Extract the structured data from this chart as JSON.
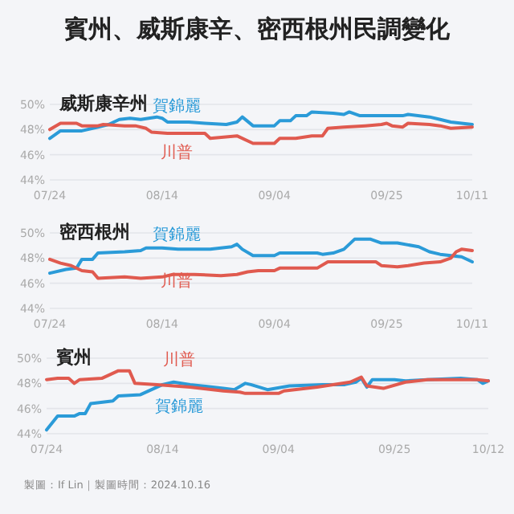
{
  "chart_data": [
    {
      "type": "line",
      "title": "賓州、威斯康辛、密西根州民調變化",
      "subtitle": "威斯康辛州",
      "xlim": [
        "2024-07-24",
        "2024-10-11"
      ],
      "ylim": [
        44,
        50
      ],
      "grid": "y",
      "xticks": [
        {
          "value": "2024-07-24",
          "label": "07/24"
        },
        {
          "value": "2024-08-14",
          "label": "08/14"
        },
        {
          "value": "2024-09-04",
          "label": "09/04"
        },
        {
          "value": "2024-09-25",
          "label": "09/25"
        },
        {
          "value": "2024-10-11",
          "label": "10/11"
        }
      ],
      "yticks": [
        {
          "value": 44,
          "label": "44%"
        },
        {
          "value": 46,
          "label": "46%"
        },
        {
          "value": 48,
          "label": "48%"
        },
        {
          "value": 50,
          "label": "50%"
        }
      ],
      "series": [
        {
          "name": "賀錦麗",
          "color": "#2b9bd8",
          "x": [
            "2024-07-24",
            "2024-07-26",
            "2024-07-30",
            "2024-08-02",
            "2024-08-04",
            "2024-08-06",
            "2024-08-08",
            "2024-08-10",
            "2024-08-13",
            "2024-08-14",
            "2024-08-15",
            "2024-08-19",
            "2024-08-22",
            "2024-08-26",
            "2024-08-28",
            "2024-08-29",
            "2024-08-31",
            "2024-09-04",
            "2024-09-05",
            "2024-09-07",
            "2024-09-08",
            "2024-09-10",
            "2024-09-11",
            "2024-09-15",
            "2024-09-17",
            "2024-09-18",
            "2024-09-20",
            "2024-09-28",
            "2024-09-29",
            "2024-10-03",
            "2024-10-05",
            "2024-10-07",
            "2024-10-09",
            "2024-10-11"
          ],
          "values": [
            47.3,
            47.9,
            47.9,
            48.2,
            48.4,
            48.8,
            48.9,
            48.8,
            49.0,
            48.9,
            48.6,
            48.6,
            48.5,
            48.4,
            48.6,
            49.0,
            48.3,
            48.3,
            48.7,
            48.7,
            49.1,
            49.1,
            49.4,
            49.3,
            49.2,
            49.4,
            49.1,
            49.1,
            49.2,
            49.0,
            48.8,
            48.6,
            48.5,
            48.4
          ]
        },
        {
          "name": "川普",
          "color": "#e05a4f",
          "x": [
            "2024-07-24",
            "2024-07-26",
            "2024-07-29",
            "2024-07-30",
            "2024-08-02",
            "2024-08-03",
            "2024-08-07",
            "2024-08-09",
            "2024-08-11",
            "2024-08-12",
            "2024-08-15",
            "2024-08-22",
            "2024-08-23",
            "2024-08-28",
            "2024-08-31",
            "2024-09-04",
            "2024-09-05",
            "2024-09-08",
            "2024-09-11",
            "2024-09-13",
            "2024-09-14",
            "2024-09-17",
            "2024-09-21",
            "2024-09-24",
            "2024-09-25",
            "2024-09-26",
            "2024-09-28",
            "2024-09-29",
            "2024-10-03",
            "2024-10-05",
            "2024-10-07",
            "2024-10-11"
          ],
          "values": [
            48.0,
            48.5,
            48.5,
            48.3,
            48.3,
            48.4,
            48.3,
            48.3,
            48.1,
            47.8,
            47.7,
            47.7,
            47.3,
            47.5,
            46.9,
            46.9,
            47.3,
            47.3,
            47.5,
            47.5,
            48.1,
            48.2,
            48.3,
            48.4,
            48.5,
            48.3,
            48.2,
            48.5,
            48.4,
            48.3,
            48.1,
            48.2
          ]
        }
      ]
    },
    {
      "type": "line",
      "subtitle": "密西根州",
      "xlim": [
        "2024-07-24",
        "2024-10-11"
      ],
      "ylim": [
        44,
        50
      ],
      "grid": "y",
      "xticks": [
        {
          "value": "2024-07-24",
          "label": "07/24"
        },
        {
          "value": "2024-08-14",
          "label": "08/14"
        },
        {
          "value": "2024-09-04",
          "label": "09/04"
        },
        {
          "value": "2024-09-25",
          "label": "09/25"
        },
        {
          "value": "2024-10-11",
          "label": "10/11"
        }
      ],
      "yticks": [
        {
          "value": 44,
          "label": "44%"
        },
        {
          "value": 46,
          "label": "46%"
        },
        {
          "value": 48,
          "label": "48%"
        },
        {
          "value": 50,
          "label": "50%"
        }
      ],
      "series": [
        {
          "name": "賀錦麗",
          "color": "#2b9bd8",
          "x": [
            "2024-07-24",
            "2024-07-27",
            "2024-07-29",
            "2024-07-30",
            "2024-08-01",
            "2024-08-02",
            "2024-08-07",
            "2024-08-10",
            "2024-08-11",
            "2024-08-14",
            "2024-08-17",
            "2024-08-23",
            "2024-08-27",
            "2024-08-28",
            "2024-08-29",
            "2024-08-31",
            "2024-09-04",
            "2024-09-05",
            "2024-09-12",
            "2024-09-13",
            "2024-09-15",
            "2024-09-17",
            "2024-09-19",
            "2024-09-22",
            "2024-09-24",
            "2024-09-27",
            "2024-10-01",
            "2024-10-03",
            "2024-10-05",
            "2024-10-07",
            "2024-10-09",
            "2024-10-11"
          ],
          "values": [
            46.8,
            47.1,
            47.2,
            47.9,
            47.9,
            48.4,
            48.5,
            48.6,
            48.8,
            48.8,
            48.7,
            48.7,
            48.9,
            49.1,
            48.7,
            48.2,
            48.2,
            48.4,
            48.4,
            48.3,
            48.4,
            48.7,
            49.5,
            49.5,
            49.2,
            49.2,
            48.9,
            48.5,
            48.3,
            48.2,
            48.1,
            47.7
          ]
        },
        {
          "name": "川普",
          "color": "#e05a4f",
          "x": [
            "2024-07-24",
            "2024-07-26",
            "2024-07-28",
            "2024-07-30",
            "2024-08-01",
            "2024-08-02",
            "2024-08-07",
            "2024-08-10",
            "2024-08-14",
            "2024-08-16",
            "2024-08-20",
            "2024-08-25",
            "2024-08-28",
            "2024-08-30",
            "2024-09-01",
            "2024-09-04",
            "2024-09-05",
            "2024-09-12",
            "2024-09-14",
            "2024-09-18",
            "2024-09-23",
            "2024-09-24",
            "2024-09-27",
            "2024-09-29",
            "2024-10-02",
            "2024-10-05",
            "2024-10-07",
            "2024-10-08",
            "2024-10-09",
            "2024-10-11"
          ],
          "values": [
            47.9,
            47.6,
            47.4,
            47.0,
            46.9,
            46.4,
            46.5,
            46.4,
            46.5,
            46.7,
            46.7,
            46.6,
            46.7,
            46.9,
            47.0,
            47.0,
            47.2,
            47.2,
            47.7,
            47.7,
            47.7,
            47.4,
            47.3,
            47.4,
            47.6,
            47.7,
            48.0,
            48.5,
            48.7,
            48.6
          ]
        }
      ]
    },
    {
      "type": "line",
      "subtitle": "賓州",
      "xlim": [
        "2024-07-24",
        "2024-10-12"
      ],
      "ylim": [
        44,
        50
      ],
      "grid": "y",
      "xticks": [
        {
          "value": "2024-07-24",
          "label": "07/24"
        },
        {
          "value": "2024-08-14",
          "label": "08/14"
        },
        {
          "value": "2024-09-04",
          "label": "09/04"
        },
        {
          "value": "2024-09-25",
          "label": "09/25"
        },
        {
          "value": "2024-10-12",
          "label": "10/12"
        }
      ],
      "yticks": [
        {
          "value": 44,
          "label": "44%"
        },
        {
          "value": 46,
          "label": "46%"
        },
        {
          "value": 48,
          "label": "48%"
        },
        {
          "value": 50,
          "label": "50%"
        }
      ],
      "annotations": [
        "製圖：If Lin｜製圖時間：2024.10.16"
      ],
      "series": [
        {
          "name": "賀錦麗",
          "color": "#2b9bd8",
          "x": [
            "2024-07-24",
            "2024-07-26",
            "2024-07-29",
            "2024-07-30",
            "2024-07-31",
            "2024-08-01",
            "2024-08-05",
            "2024-08-06",
            "2024-08-10",
            "2024-08-14",
            "2024-08-16",
            "2024-08-19",
            "2024-08-25",
            "2024-08-27",
            "2024-08-29",
            "2024-08-30",
            "2024-09-02",
            "2024-09-06",
            "2024-09-12",
            "2024-09-16",
            "2024-09-18",
            "2024-09-19",
            "2024-09-20",
            "2024-09-21",
            "2024-09-25",
            "2024-09-27",
            "2024-10-01",
            "2024-10-07",
            "2024-10-10",
            "2024-10-11",
            "2024-10-12"
          ],
          "values": [
            44.3,
            45.4,
            45.4,
            45.6,
            45.6,
            46.4,
            46.6,
            47.0,
            47.1,
            47.9,
            48.1,
            47.9,
            47.6,
            47.5,
            48.0,
            47.9,
            47.5,
            47.8,
            47.9,
            47.9,
            48.1,
            48.4,
            47.7,
            48.3,
            48.3,
            48.2,
            48.3,
            48.4,
            48.3,
            48.0,
            48.2
          ]
        },
        {
          "name": "川普",
          "color": "#e05a4f",
          "x": [
            "2024-07-24",
            "2024-07-26",
            "2024-07-28",
            "2024-07-29",
            "2024-07-30",
            "2024-08-03",
            "2024-08-06",
            "2024-08-08",
            "2024-08-09",
            "2024-08-13",
            "2024-08-19",
            "2024-08-25",
            "2024-08-28",
            "2024-08-29",
            "2024-09-04",
            "2024-09-05",
            "2024-09-11",
            "2024-09-17",
            "2024-09-19",
            "2024-09-20",
            "2024-09-23",
            "2024-09-27",
            "2024-10-01",
            "2024-10-10",
            "2024-10-12"
          ],
          "values": [
            48.3,
            48.4,
            48.4,
            48.0,
            48.3,
            48.4,
            49.0,
            49.0,
            48.0,
            47.9,
            47.7,
            47.4,
            47.3,
            47.2,
            47.2,
            47.4,
            47.7,
            48.1,
            48.5,
            47.8,
            47.6,
            48.1,
            48.3,
            48.3,
            48.2
          ]
        }
      ]
    }
  ]
}
